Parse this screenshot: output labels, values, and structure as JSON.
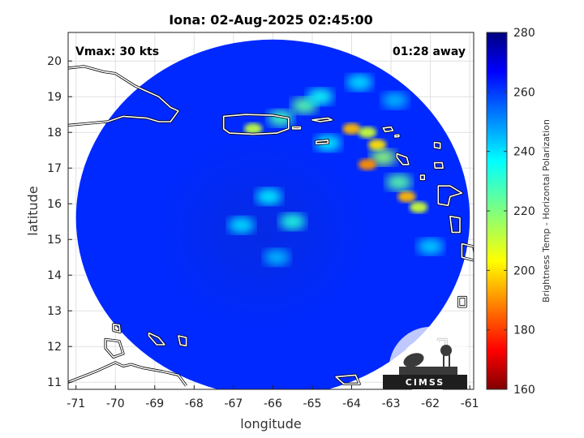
{
  "chart_data": {
    "type": "heatmap",
    "title": "Iona: 02-Aug-2025 02:45:00",
    "xlabel": "longitude",
    "ylabel": "latitude",
    "xlim": [
      -71.2,
      -60.9
    ],
    "ylim": [
      10.8,
      20.8
    ],
    "xticks": [
      -71,
      -70,
      -69,
      -68,
      -67,
      -66,
      -65,
      -64,
      -63,
      -62,
      -61
    ],
    "yticks": [
      11,
      12,
      13,
      14,
      15,
      16,
      17,
      18,
      19,
      20
    ],
    "xtick_labels": [
      "-71",
      "-70",
      "-69",
      "-68",
      "-67",
      "-66",
      "-65",
      "-64",
      "-63",
      "-62",
      "-61"
    ],
    "ytick_labels": [
      "11",
      "12",
      "13",
      "14",
      "15",
      "16",
      "17",
      "18",
      "19",
      "20"
    ],
    "grid": true,
    "annotations": {
      "vmax": "Vmax: 30 kts",
      "time_offset": "01:28 away"
    },
    "colorbar": {
      "label": "Brightness Temp - Horizontal Polarization",
      "min": 160,
      "max": 280,
      "ticks": [
        160,
        180,
        200,
        220,
        240,
        260,
        280
      ],
      "tick_labels": [
        "160",
        "180",
        "200",
        "220",
        "240",
        "260",
        "280"
      ],
      "colormap": "jet"
    },
    "swath": {
      "center_lon": -66.0,
      "center_lat": 15.6,
      "radius_deg": 5.0,
      "background_value": 262
    },
    "storm_center": {
      "lon": -66.3,
      "lat": 15.2
    },
    "features": [
      {
        "lon": -66.5,
        "lat": 18.1,
        "value": 212
      },
      {
        "lon": -65.2,
        "lat": 18.75,
        "value": 225
      },
      {
        "lon": -64.0,
        "lat": 18.1,
        "value": 195
      },
      {
        "lon": -63.6,
        "lat": 18.0,
        "value": 210
      },
      {
        "lon": -63.35,
        "lat": 17.65,
        "value": 200
      },
      {
        "lon": -63.2,
        "lat": 17.3,
        "value": 218
      },
      {
        "lon": -63.6,
        "lat": 17.1,
        "value": 190
      },
      {
        "lon": -62.6,
        "lat": 16.2,
        "value": 195
      },
      {
        "lon": -62.3,
        "lat": 15.9,
        "value": 210
      },
      {
        "lon": -62.8,
        "lat": 16.6,
        "value": 225
      },
      {
        "lon": -65.8,
        "lat": 18.4,
        "value": 228
      },
      {
        "lon": -64.6,
        "lat": 17.7,
        "value": 238
      },
      {
        "lon": -65.5,
        "lat": 15.5,
        "value": 232
      },
      {
        "lon": -66.1,
        "lat": 16.2,
        "value": 238
      },
      {
        "lon": -66.8,
        "lat": 15.4,
        "value": 240
      },
      {
        "lon": -65.9,
        "lat": 14.5,
        "value": 245
      },
      {
        "lon": -62.0,
        "lat": 14.8,
        "value": 242
      },
      {
        "lon": -64.8,
        "lat": 19.0,
        "value": 235
      },
      {
        "lon": -63.8,
        "lat": 19.4,
        "value": 240
      },
      {
        "lon": -62.9,
        "lat": 18.9,
        "value": 245
      }
    ],
    "coastlines": [
      {
        "name": "Hispaniola",
        "closed": false,
        "points": [
          [
            -71.2,
            19.8
          ],
          [
            -70.8,
            19.85
          ],
          [
            -70.3,
            19.7
          ],
          [
            -70.0,
            19.65
          ],
          [
            -69.5,
            19.3
          ],
          [
            -69.2,
            19.15
          ],
          [
            -68.9,
            19.0
          ],
          [
            -68.6,
            18.7
          ],
          [
            -68.4,
            18.6
          ],
          [
            -68.6,
            18.3
          ],
          [
            -68.9,
            18.3
          ],
          [
            -69.2,
            18.4
          ],
          [
            -69.8,
            18.45
          ],
          [
            -70.2,
            18.3
          ],
          [
            -70.7,
            18.25
          ],
          [
            -71.2,
            18.2
          ]
        ]
      },
      {
        "name": "Puerto Rico",
        "closed": true,
        "points": [
          [
            -67.25,
            18.45
          ],
          [
            -66.7,
            18.5
          ],
          [
            -66.0,
            18.48
          ],
          [
            -65.6,
            18.4
          ],
          [
            -65.6,
            18.1
          ],
          [
            -65.9,
            17.98
          ],
          [
            -66.5,
            17.95
          ],
          [
            -67.1,
            17.98
          ],
          [
            -67.25,
            18.1
          ]
        ]
      },
      {
        "name": "Vieques",
        "closed": true,
        "points": [
          [
            -65.5,
            18.15
          ],
          [
            -65.3,
            18.15
          ],
          [
            -65.3,
            18.1
          ],
          [
            -65.5,
            18.1
          ]
        ]
      },
      {
        "name": "Virgin Islands",
        "closed": true,
        "points": [
          [
            -65.0,
            18.35
          ],
          [
            -64.6,
            18.4
          ],
          [
            -64.5,
            18.35
          ],
          [
            -64.8,
            18.3
          ]
        ]
      },
      {
        "name": "St Croix",
        "closed": true,
        "points": [
          [
            -64.9,
            17.75
          ],
          [
            -64.6,
            17.78
          ],
          [
            -64.6,
            17.7
          ],
          [
            -64.9,
            17.68
          ]
        ]
      },
      {
        "name": "Anguilla-St Martin",
        "closed": true,
        "points": [
          [
            -63.2,
            18.12
          ],
          [
            -63.0,
            18.15
          ],
          [
            -62.95,
            18.05
          ],
          [
            -63.15,
            18.02
          ]
        ]
      },
      {
        "name": "St Barthelemy",
        "closed": true,
        "points": [
          [
            -62.9,
            17.92
          ],
          [
            -62.8,
            17.93
          ],
          [
            -62.8,
            17.88
          ],
          [
            -62.9,
            17.87
          ]
        ]
      },
      {
        "name": "Barbuda",
        "closed": true,
        "points": [
          [
            -61.9,
            17.72
          ],
          [
            -61.75,
            17.7
          ],
          [
            -61.75,
            17.55
          ],
          [
            -61.9,
            17.58
          ]
        ]
      },
      {
        "name": "Antigua",
        "closed": true,
        "points": [
          [
            -61.9,
            17.15
          ],
          [
            -61.7,
            17.15
          ],
          [
            -61.68,
            17.0
          ],
          [
            -61.88,
            17.0
          ]
        ]
      },
      {
        "name": "St Kitts-Nevis",
        "closed": true,
        "points": [
          [
            -62.85,
            17.4
          ],
          [
            -62.6,
            17.3
          ],
          [
            -62.55,
            17.1
          ],
          [
            -62.7,
            17.1
          ],
          [
            -62.85,
            17.3
          ]
        ]
      },
      {
        "name": "Guadeloupe",
        "closed": true,
        "points": [
          [
            -61.8,
            16.5
          ],
          [
            -61.5,
            16.5
          ],
          [
            -61.2,
            16.3
          ],
          [
            -61.5,
            16.2
          ],
          [
            -61.55,
            15.95
          ],
          [
            -61.8,
            16.0
          ],
          [
            -61.8,
            16.3
          ]
        ]
      },
      {
        "name": "Montserrat",
        "closed": true,
        "points": [
          [
            -62.25,
            16.8
          ],
          [
            -62.15,
            16.8
          ],
          [
            -62.15,
            16.68
          ],
          [
            -62.25,
            16.68
          ]
        ]
      },
      {
        "name": "Dominica",
        "closed": true,
        "points": [
          [
            -61.5,
            15.65
          ],
          [
            -61.25,
            15.6
          ],
          [
            -61.25,
            15.2
          ],
          [
            -61.45,
            15.2
          ]
        ]
      },
      {
        "name": "Martinique",
        "closed": true,
        "points": [
          [
            -61.2,
            14.88
          ],
          [
            -60.9,
            14.8
          ],
          [
            -60.85,
            14.4
          ],
          [
            -61.2,
            14.5
          ]
        ]
      },
      {
        "name": "Aruba",
        "closed": true,
        "points": [
          [
            -70.05,
            12.62
          ],
          [
            -69.9,
            12.6
          ],
          [
            -69.88,
            12.4
          ],
          [
            -70.05,
            12.45
          ]
        ]
      },
      {
        "name": "Curacao",
        "closed": true,
        "points": [
          [
            -69.15,
            12.38
          ],
          [
            -68.9,
            12.25
          ],
          [
            -68.75,
            12.05
          ],
          [
            -68.95,
            12.05
          ],
          [
            -69.15,
            12.3
          ]
        ]
      },
      {
        "name": "Bonaire",
        "closed": true,
        "points": [
          [
            -68.4,
            12.3
          ],
          [
            -68.2,
            12.25
          ],
          [
            -68.2,
            12.02
          ],
          [
            -68.35,
            12.05
          ]
        ]
      },
      {
        "name": "Venezuela coast",
        "closed": false,
        "points": [
          [
            -71.2,
            11.0
          ],
          [
            -70.5,
            11.3
          ],
          [
            -70.0,
            11.55
          ],
          [
            -69.8,
            11.45
          ],
          [
            -69.6,
            11.5
          ],
          [
            -69.3,
            11.4
          ],
          [
            -68.8,
            11.3
          ],
          [
            -68.4,
            11.2
          ],
          [
            -68.2,
            10.9
          ]
        ]
      },
      {
        "name": "Paraguana",
        "closed": true,
        "points": [
          [
            -70.25,
            12.2
          ],
          [
            -69.9,
            12.15
          ],
          [
            -69.8,
            11.8
          ],
          [
            -70.05,
            11.7
          ],
          [
            -70.25,
            11.95
          ]
        ]
      },
      {
        "name": "Margarita",
        "closed": true,
        "points": [
          [
            -64.4,
            11.15
          ],
          [
            -63.9,
            11.2
          ],
          [
            -63.8,
            10.95
          ],
          [
            -64.2,
            10.95
          ]
        ]
      },
      {
        "name": "Grenada",
        "closed": true,
        "points": [
          [
            -61.8,
            12.2
          ],
          [
            -61.6,
            12.2
          ],
          [
            -61.6,
            11.98
          ],
          [
            -61.8,
            11.98
          ]
        ]
      },
      {
        "name": "St Vincent",
        "closed": true,
        "points": [
          [
            -61.28,
            13.38
          ],
          [
            -61.1,
            13.38
          ],
          [
            -61.1,
            13.12
          ],
          [
            -61.28,
            13.12
          ]
        ]
      }
    ]
  },
  "logo": {
    "text": "CIMSS"
  }
}
